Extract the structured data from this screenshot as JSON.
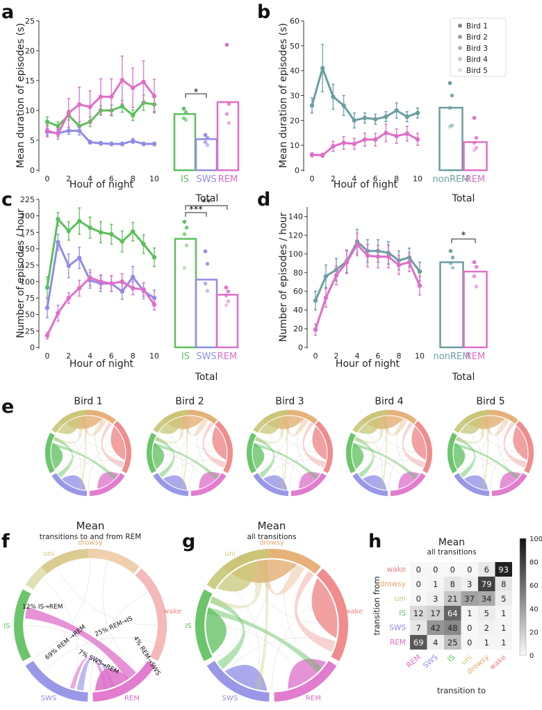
{
  "colors": {
    "IS": "#5cbf5c",
    "SWS": "#8f8ce6",
    "REM": "#de6ec9",
    "nonREM": "#6a9ea0",
    "uni": "#c8c878",
    "drowsy": "#e3a86a",
    "wake": "#ee8080"
  },
  "hours": [
    "0",
    "1",
    "2",
    "3",
    "4",
    "5",
    "6",
    "7",
    "8",
    "9",
    "10"
  ],
  "panels": {
    "a": {
      "label": "a",
      "ylabel": "Mean duration of episodes (s)",
      "xlabel": "Hour of night",
      "total_label": "Total",
      "bar_labels": [
        "IS",
        "SWS",
        "REM"
      ],
      "sig": "*"
    },
    "b": {
      "label": "b",
      "ylabel": "Mean duration of episodes (s)",
      "xlabel": "Hour of night",
      "total_label": "Total",
      "bar_labels": [
        "nonREM",
        "REM"
      ]
    },
    "c": {
      "label": "c",
      "ylabel": "Number of episodes / hour",
      "xlabel": "Hour of night",
      "total_label": "Total",
      "bar_labels": [
        "IS",
        "SWS",
        "REM"
      ],
      "sig1": "***",
      "sig2": "**"
    },
    "d": {
      "label": "d",
      "ylabel": "Number of episodes / hour",
      "xlabel": "Hour of night",
      "total_label": "Total",
      "bar_labels": [
        "nonREM",
        "REM"
      ],
      "sig": "*"
    },
    "e": {
      "label": "e",
      "birds": [
        "Bird 1",
        "Bird 2",
        "Bird 3",
        "Bird 4",
        "Bird 5"
      ]
    },
    "f": {
      "label": "f",
      "title": "Mean",
      "subtitle": "transitions to and from REM",
      "annotations": [
        "12% IS→REM",
        "25% REM→IS",
        "69% REM →REM",
        "7% SWS→REM",
        "4% REM→SWS"
      ]
    },
    "g": {
      "label": "g",
      "title": "Mean",
      "subtitle": "all transitions"
    },
    "h": {
      "label": "h",
      "title": "Mean",
      "subtitle": "all transitions",
      "ylabel": "transition from",
      "xlabel": "transition to"
    }
  },
  "chord_labels": [
    "drowsy",
    "wake",
    "REM",
    "SWS",
    "IS",
    "uni"
  ],
  "legend": [
    "Bird 1",
    "Bird 2",
    "Bird 3",
    "Bird 4",
    "Bird 5"
  ],
  "chart_data": [
    {
      "type": "line",
      "panel": "a",
      "title": "",
      "xlabel": "Hour of night",
      "ylabel": "Mean duration of episodes (s)",
      "ylim": [
        0,
        25
      ],
      "x": [
        0,
        1,
        2,
        3,
        4,
        5,
        6,
        7,
        8,
        9,
        10
      ],
      "series": [
        {
          "name": "IS",
          "values": [
            8.1,
            7.4,
            9.2,
            7.4,
            8.1,
            10.0,
            10.0,
            10.7,
            9.2,
            11.3,
            11.0
          ],
          "err": [
            0.8,
            0.7,
            0.8,
            0.7,
            0.8,
            0.8,
            0.9,
            1.0,
            0.9,
            1.3,
            1.2
          ]
        },
        {
          "name": "SWS",
          "values": [
            6.4,
            6.2,
            6.6,
            6.6,
            4.7,
            4.5,
            4.4,
            4.4,
            4.9,
            4.4,
            4.4
          ],
          "err": [
            0.6,
            0.6,
            0.6,
            0.7,
            0.3,
            0.3,
            0.3,
            0.3,
            0.4,
            0.3,
            0.3
          ]
        },
        {
          "name": "REM",
          "values": [
            6.6,
            6.1,
            9.6,
            11.0,
            10.6,
            12.3,
            12.3,
            15.1,
            13.8,
            14.8,
            12.4
          ],
          "err": [
            1.0,
            0.9,
            2.4,
            2.9,
            2.7,
            3.0,
            3.0,
            4.0,
            3.3,
            3.5,
            2.8
          ]
        }
      ],
      "totals": {
        "categories": [
          "IS",
          "SWS",
          "REM"
        ],
        "values": [
          9.4,
          5.2,
          11.4
        ],
        "points": [
          [
            10.3,
            9.7,
            8.7,
            8.4
          ],
          [
            5.9,
            5.4,
            4.7,
            4.2
          ],
          [
            21.0,
            11.1,
            9.4,
            7.9
          ]
        ]
      }
    },
    {
      "type": "line",
      "panel": "b",
      "xlabel": "Hour of night",
      "ylabel": "Mean duration of episodes (s)",
      "ylim": [
        0,
        60
      ],
      "x": [
        0,
        1,
        2,
        3,
        4,
        5,
        6,
        7,
        8,
        9,
        10
      ],
      "series": [
        {
          "name": "nonREM",
          "values": [
            26,
            41,
            29.5,
            26,
            20,
            21,
            20.5,
            21.5,
            24,
            21.5,
            23
          ],
          "err": [
            3,
            9.5,
            5,
            4,
            3,
            2,
            2,
            2,
            3,
            2,
            2
          ]
        },
        {
          "name": "REM",
          "values": [
            6.2,
            6.0,
            9.6,
            11.0,
            10.6,
            12.3,
            12.3,
            15.0,
            13.7,
            14.7,
            12.4
          ],
          "err": [
            0.8,
            0.8,
            2.0,
            2.5,
            2.2,
            2.6,
            2.6,
            3.5,
            2.9,
            3.0,
            2.4
          ]
        }
      ],
      "totals": {
        "categories": [
          "nonREM",
          "REM"
        ],
        "values": [
          25.1,
          11.3
        ],
        "points": [
          [
            35,
            30,
            25,
            18,
            17.5
          ],
          [
            21,
            13,
            11,
            9,
            8
          ]
        ]
      }
    },
    {
      "type": "line",
      "panel": "c",
      "xlabel": "Hour of night",
      "ylabel": "Number of episodes / hour",
      "ylim": [
        0,
        225
      ],
      "x": [
        0,
        1,
        2,
        3,
        4,
        5,
        6,
        7,
        8,
        9,
        10
      ],
      "series": [
        {
          "name": "IS",
          "values": [
            91,
            195,
            177,
            192,
            182,
            175,
            172,
            161,
            176,
            157,
            137
          ],
          "err": [
            16,
            10,
            14,
            20,
            16,
            16,
            15,
            16,
            14,
            14,
            14
          ]
        },
        {
          "name": "SWS",
          "values": [
            60,
            160,
            124,
            136,
            102,
            97,
            97,
            85,
            107,
            86,
            75
          ],
          "err": [
            15,
            12,
            18,
            16,
            12,
            12,
            12,
            12,
            16,
            12,
            12
          ]
        },
        {
          "name": "REM",
          "values": [
            18,
            52,
            75,
            90,
            106,
            100,
            97,
            100,
            90,
            88,
            65
          ],
          "err": [
            5,
            12,
            8,
            12,
            12,
            10,
            12,
            12,
            10,
            10,
            8
          ]
        }
      ],
      "totals": {
        "categories": [
          "IS",
          "SWS",
          "REM"
        ],
        "values": [
          165,
          103,
          80
        ],
        "points": [
          [
            191,
            182,
            172,
            155,
            121
          ],
          [
            146,
            127,
            97,
            86
          ],
          [
            91,
            85,
            79,
            70,
            64
          ]
        ]
      }
    },
    {
      "type": "line",
      "panel": "d",
      "xlabel": "Hour of night",
      "ylabel": "Number of episodes / hour",
      "ylim": [
        0,
        150
      ],
      "x": [
        0,
        1,
        2,
        3,
        4,
        5,
        6,
        7,
        8,
        9,
        10
      ],
      "series": [
        {
          "name": "nonREM",
          "values": [
            50,
            76,
            83,
            92,
            113,
            103,
            103,
            101,
            93,
            96,
            81
          ],
          "err": [
            10,
            12,
            12,
            12,
            13,
            12,
            12,
            12,
            10,
            10,
            10
          ]
        },
        {
          "name": "REM",
          "values": [
            19,
            53,
            77,
            91,
            110,
            98,
            97,
            97,
            88,
            91,
            66
          ],
          "err": [
            6,
            10,
            10,
            12,
            12,
            12,
            12,
            12,
            10,
            10,
            10
          ]
        }
      ],
      "totals": {
        "categories": [
          "nonREM",
          "REM"
        ],
        "values": [
          91,
          81
        ],
        "points": [
          [
            103,
            96,
            90,
            85
          ],
          [
            91,
            86,
            76,
            65
          ]
        ]
      }
    },
    {
      "type": "heatmap",
      "panel": "h",
      "title": "Mean",
      "subtitle": "all transitions",
      "xlabel": "transition to",
      "ylabel": "transition from",
      "rows": [
        "wake",
        "drowsy",
        "uni",
        "IS",
        "SWS",
        "REM"
      ],
      "cols": [
        "REM",
        "SWS",
        "IS",
        "uni",
        "drowsy",
        "wake"
      ],
      "values": [
        [
          0,
          0,
          0,
          0,
          6,
          93
        ],
        [
          0,
          1,
          8,
          3,
          79,
          8
        ],
        [
          0,
          3,
          21,
          37,
          34,
          5
        ],
        [
          12,
          17,
          64,
          1,
          5,
          1
        ],
        [
          7,
          42,
          48,
          0,
          2,
          1
        ],
        [
          69,
          4,
          25,
          0,
          1,
          1
        ]
      ],
      "colorbar": {
        "min": 0,
        "max": 100,
        "ticks": [
          "0",
          "20",
          "40",
          "60",
          "80",
          "100"
        ]
      }
    }
  ]
}
